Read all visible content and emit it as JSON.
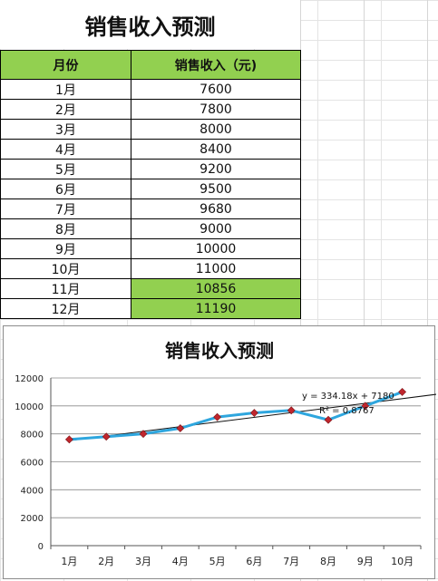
{
  "sheet": {
    "title": "销售收入预测",
    "headers": [
      "月份",
      "销售收入（元)"
    ],
    "rows": [
      {
        "month": "1月",
        "value": "7600",
        "highlight": false
      },
      {
        "month": "2月",
        "value": "7800",
        "highlight": false
      },
      {
        "month": "3月",
        "value": "8000",
        "highlight": false
      },
      {
        "month": "4月",
        "value": "8400",
        "highlight": false
      },
      {
        "month": "5月",
        "value": "9200",
        "highlight": false
      },
      {
        "month": "6月",
        "value": "9500",
        "highlight": false
      },
      {
        "month": "7月",
        "value": "9680",
        "highlight": false
      },
      {
        "month": "8月",
        "value": "9000",
        "highlight": false
      },
      {
        "month": "9月",
        "value": "10000",
        "highlight": false
      },
      {
        "month": "10月",
        "value": "11000",
        "highlight": false
      },
      {
        "month": "11月",
        "value": "10856",
        "highlight": true
      },
      {
        "month": "12月",
        "value": "11190",
        "highlight": true
      }
    ],
    "colors": {
      "header_fill": "#92d050",
      "highlight_fill": "#92d050",
      "series_line": "#2ea6de",
      "marker": "#c0262d",
      "trendline": "#111111"
    }
  },
  "chart_data": {
    "type": "line",
    "title": "销售收入预测",
    "categories": [
      "1月",
      "2月",
      "3月",
      "4月",
      "5月",
      "6月",
      "7月",
      "8月",
      "9月",
      "10月"
    ],
    "series": [
      {
        "values": [
          7600,
          7800,
          8000,
          8400,
          9200,
          9500,
          9680,
          9000,
          10000,
          11000
        ]
      }
    ],
    "trendline": {
      "type": "linear",
      "slope": 334.18,
      "intercept": 7180,
      "equation_text": "y = 334.18x + 7180",
      "r2_text": "R² = 0.8767"
    },
    "ylim": [
      0,
      12000
    ],
    "yticks": [
      0,
      2000,
      4000,
      6000,
      8000,
      10000,
      12000
    ],
    "grid": "horizontal",
    "legend": "none",
    "xlabel": "",
    "ylabel": ""
  }
}
